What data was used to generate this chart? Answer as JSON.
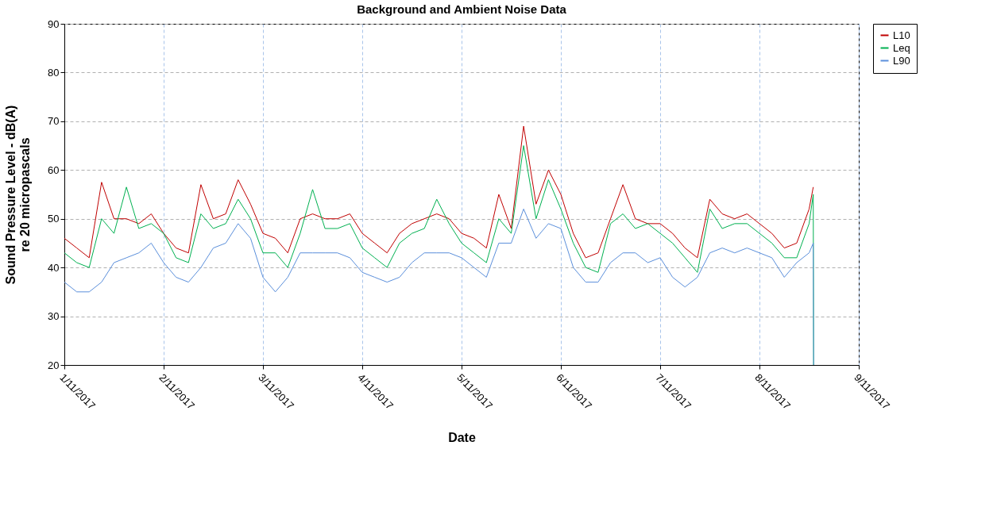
{
  "chart_data": {
    "type": "line",
    "title": "Background and Ambient Noise Data",
    "xlabel": "Date",
    "ylabel": "Sound Pressure Level - dB(A)\nre 20 micropascals",
    "x": [
      "2017-11-01T00:00",
      "2017-11-01T03:00",
      "2017-11-01T06:00",
      "2017-11-01T09:00",
      "2017-11-01T12:00",
      "2017-11-01T15:00",
      "2017-11-01T18:00",
      "2017-11-01T21:00",
      "2017-11-02T00:00",
      "2017-11-02T03:00",
      "2017-11-02T06:00",
      "2017-11-02T09:00",
      "2017-11-02T12:00",
      "2017-11-02T15:00",
      "2017-11-02T18:00",
      "2017-11-02T21:00",
      "2017-11-03T00:00",
      "2017-11-03T03:00",
      "2017-11-03T06:00",
      "2017-11-03T09:00",
      "2017-11-03T12:00",
      "2017-11-03T15:00",
      "2017-11-03T18:00",
      "2017-11-03T21:00",
      "2017-11-04T00:00",
      "2017-11-04T03:00",
      "2017-11-04T06:00",
      "2017-11-04T09:00",
      "2017-11-04T12:00",
      "2017-11-04T15:00",
      "2017-11-04T18:00",
      "2017-11-04T21:00",
      "2017-11-05T00:00",
      "2017-11-05T03:00",
      "2017-11-05T06:00",
      "2017-11-05T09:00",
      "2017-11-05T12:00",
      "2017-11-05T15:00",
      "2017-11-05T18:00",
      "2017-11-05T21:00",
      "2017-11-06T00:00",
      "2017-11-06T03:00",
      "2017-11-06T06:00",
      "2017-11-06T09:00",
      "2017-11-06T12:00",
      "2017-11-06T15:00",
      "2017-11-06T18:00",
      "2017-11-06T21:00",
      "2017-11-07T00:00",
      "2017-11-07T03:00",
      "2017-11-07T06:00",
      "2017-11-07T09:00",
      "2017-11-07T12:00",
      "2017-11-07T15:00",
      "2017-11-07T18:00",
      "2017-11-07T21:00",
      "2017-11-08T00:00",
      "2017-11-08T03:00",
      "2017-11-08T06:00",
      "2017-11-08T09:00",
      "2017-11-08T12:00",
      "2017-11-08T13:00",
      "2017-11-08T13:05"
    ],
    "series": [
      {
        "name": "L10",
        "color": "#c00000",
        "values": [
          46,
          44,
          42,
          57.5,
          50,
          50,
          49,
          51,
          47,
          44,
          43,
          57,
          50,
          51,
          58,
          53,
          47,
          46,
          43,
          50,
          51,
          50,
          50,
          51,
          47,
          45,
          43,
          47,
          49,
          50,
          51,
          50,
          47,
          46,
          44,
          55,
          48,
          69,
          53,
          60,
          55,
          47,
          42,
          43,
          50,
          57,
          50,
          49,
          49,
          47,
          44,
          42,
          54,
          51,
          50,
          51,
          49,
          47,
          44,
          45,
          52,
          56.5,
          null
        ]
      },
      {
        "name": "Leq",
        "color": "#00b050",
        "values": [
          43,
          41,
          40,
          50,
          47,
          56.5,
          48,
          49,
          47,
          42,
          41,
          51,
          48,
          49,
          54,
          50,
          43,
          43,
          40,
          47,
          56,
          48,
          48,
          49,
          44,
          42,
          40,
          45,
          47,
          48,
          54,
          49,
          45,
          43,
          41,
          50,
          47,
          65,
          50,
          58,
          52,
          45,
          40,
          39,
          49,
          51,
          48,
          49,
          47,
          45,
          42,
          39,
          52,
          48,
          49,
          49,
          47,
          45,
          42,
          42,
          49,
          55,
          20
        ]
      },
      {
        "name": "L90",
        "color": "#5b8fdb",
        "values": [
          37,
          35,
          35,
          37,
          41,
          42,
          43,
          45,
          41,
          38,
          37,
          40,
          44,
          45,
          49,
          46,
          38,
          35,
          38,
          43,
          43,
          43,
          43,
          42,
          39,
          38,
          37,
          38,
          41,
          43,
          43,
          43,
          42,
          40,
          38,
          45,
          45,
          52,
          46,
          49,
          48,
          40,
          37,
          37,
          41,
          43,
          43,
          41,
          42,
          38,
          36,
          38,
          43,
          44,
          43,
          44,
          43,
          42,
          38,
          41,
          43,
          45,
          20
        ]
      }
    ],
    "xlim": [
      "2017-11-01",
      "2017-11-09"
    ],
    "xticks": [
      {
        "value": "2017-11-01",
        "label": "1/11/2017"
      },
      {
        "value": "2017-11-02",
        "label": "2/11/2017"
      },
      {
        "value": "2017-11-03",
        "label": "3/11/2017"
      },
      {
        "value": "2017-11-04",
        "label": "4/11/2017"
      },
      {
        "value": "2017-11-05",
        "label": "5/11/2017"
      },
      {
        "value": "2017-11-06",
        "label": "6/11/2017"
      },
      {
        "value": "2017-11-07",
        "label": "7/11/2017"
      },
      {
        "value": "2017-11-08",
        "label": "8/11/2017"
      },
      {
        "value": "2017-11-09",
        "label": "9/11/2017"
      }
    ],
    "ylim": [
      20,
      90
    ],
    "yticks": [
      20,
      30,
      40,
      50,
      60,
      70,
      80,
      90
    ],
    "grid": true,
    "legend": "right",
    "marker": "none",
    "line_style": "solid"
  }
}
